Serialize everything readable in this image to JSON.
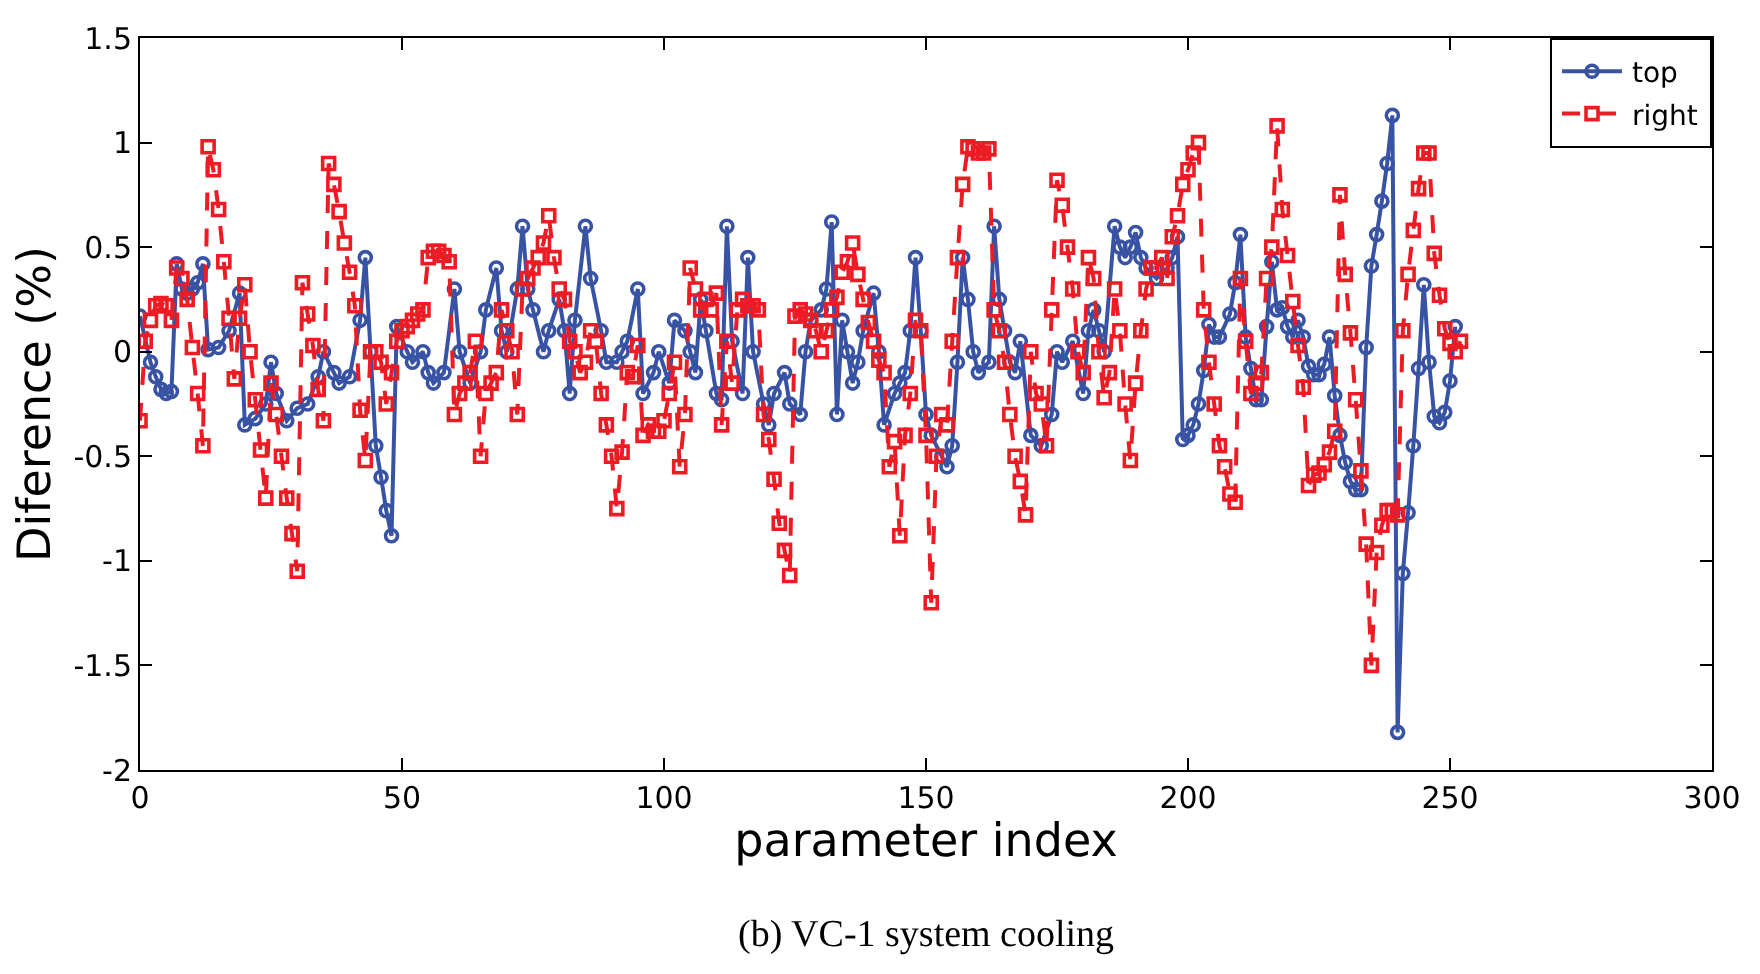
{
  "chart_data": {
    "type": "line",
    "xlabel": "parameter index",
    "ylabel": "Diference (%)",
    "annotations": [
      "(b) VC-1 system cooling"
    ],
    "xlim": [
      0,
      300
    ],
    "xticks": [
      0,
      50,
      100,
      150,
      200,
      250,
      300
    ],
    "ylim": [
      -2,
      1.5
    ],
    "yticks": [
      -2,
      -1.5,
      -1,
      -0.5,
      0,
      0.5,
      1,
      1.5
    ],
    "legend": "top right",
    "series": [
      {
        "name": "top",
        "color": "#3953a4",
        "marker": "circle",
        "line_style": "solid",
        "x": [
          0,
          2,
          3,
          4,
          5,
          6,
          7,
          8,
          9,
          10,
          11,
          12,
          13,
          15,
          17,
          19,
          20,
          22,
          24,
          25,
          26,
          28,
          30,
          32,
          34,
          35,
          37,
          38,
          40,
          42,
          43,
          44,
          45,
          46,
          47,
          48,
          49,
          51,
          52,
          54,
          55,
          56,
          58,
          60,
          61,
          63,
          65,
          66,
          68,
          69,
          70,
          72,
          73,
          74,
          75,
          77,
          78,
          80,
          81,
          82,
          83,
          85,
          86,
          88,
          89,
          91,
          92,
          93,
          95,
          96,
          98,
          99,
          101,
          102,
          104,
          105,
          106,
          107,
          108,
          110,
          111,
          112,
          113,
          115,
          116,
          117,
          119,
          120,
          121,
          123,
          124,
          126,
          127,
          128,
          130,
          131,
          132,
          133,
          134,
          135,
          136,
          137,
          138,
          140,
          141,
          142,
          144,
          145,
          146,
          147,
          148,
          149,
          150,
          151,
          153,
          154,
          155,
          156,
          157,
          158,
          159,
          160,
          162,
          163,
          164,
          165,
          166,
          167,
          168,
          170,
          172,
          174,
          175,
          176,
          178,
          180,
          181,
          182,
          183,
          184,
          186,
          187,
          188,
          189,
          190,
          191,
          192,
          194,
          196,
          197,
          198,
          199,
          200,
          201,
          202,
          203,
          204,
          205,
          206,
          208,
          209,
          210,
          211,
          212,
          213,
          214,
          215,
          216,
          217,
          218,
          219,
          220,
          221,
          222,
          223,
          224,
          225,
          226,
          227,
          228,
          229,
          230,
          231,
          232,
          233,
          234,
          235,
          236,
          237,
          238,
          239,
          240,
          241,
          242,
          243,
          244,
          245,
          246,
          247,
          248,
          249,
          250,
          251
        ],
        "values": [
          0.17,
          -0.05,
          -0.12,
          -0.18,
          -0.2,
          -0.19,
          0.42,
          0.3,
          0.28,
          0.3,
          0.33,
          0.42,
          0.01,
          0.02,
          0.1,
          0.28,
          -0.35,
          -0.32,
          -0.25,
          -0.05,
          -0.2,
          -0.33,
          -0.27,
          -0.25,
          -0.12,
          0.0,
          -0.1,
          -0.15,
          -0.12,
          0.15,
          0.45,
          0.0,
          -0.45,
          -0.6,
          -0.76,
          -0.88,
          0.12,
          0.0,
          -0.05,
          0.0,
          -0.1,
          -0.15,
          -0.1,
          0.3,
          0.0,
          -0.15,
          0.0,
          0.2,
          0.4,
          0.1,
          0.0,
          0.3,
          0.6,
          0.3,
          0.2,
          0.0,
          0.1,
          0.25,
          0.1,
          -0.2,
          0.15,
          0.6,
          0.35,
          0.1,
          -0.05,
          -0.05,
          0.0,
          0.05,
          0.3,
          -0.2,
          -0.1,
          0.0,
          -0.15,
          0.15,
          0.1,
          0.0,
          -0.1,
          0.25,
          0.1,
          -0.2,
          -0.23,
          0.6,
          0.05,
          -0.2,
          0.45,
          0.0,
          -0.25,
          -0.35,
          -0.2,
          -0.1,
          -0.25,
          -0.3,
          0.0,
          0.15,
          0.2,
          0.3,
          0.62,
          -0.3,
          0.15,
          0.0,
          -0.15,
          -0.05,
          0.1,
          0.28,
          0.0,
          -0.35,
          -0.2,
          -0.15,
          -0.1,
          0.1,
          0.45,
          0.1,
          -0.3,
          -0.4,
          -0.5,
          -0.55,
          -0.45,
          -0.05,
          0.45,
          0.25,
          0.0,
          -0.1,
          -0.05,
          0.6,
          0.25,
          0.1,
          -0.05,
          -0.1,
          0.05,
          -0.4,
          -0.45,
          -0.3,
          0.0,
          -0.05,
          0.05,
          -0.2,
          0.1,
          0.2,
          0.1,
          0.0,
          0.6,
          0.5,
          0.45,
          0.5,
          0.57,
          0.45,
          0.4,
          0.35,
          0.4,
          0.45,
          0.55,
          -0.42,
          -0.4,
          -0.35,
          -0.25,
          -0.09,
          0.13,
          0.07,
          0.07,
          0.18,
          0.33,
          0.56,
          0.07,
          -0.08,
          -0.23,
          -0.23,
          0.12,
          0.43,
          0.2,
          0.21,
          0.12,
          0.07,
          0.15,
          0.07,
          -0.07,
          -0.11,
          -0.11,
          -0.06,
          0.07,
          -0.21,
          -0.4,
          -0.53,
          -0.62,
          -0.66,
          -0.66,
          0.02,
          0.41,
          0.56,
          0.72,
          0.9,
          1.13,
          -1.82,
          -1.06,
          -0.77,
          -0.45,
          -0.08,
          0.32,
          -0.05,
          -0.31,
          -0.34,
          -0.29,
          -0.14,
          0.12
        ]
      },
      {
        "name": "right",
        "color": "#ed1c24",
        "marker": "square",
        "line_style": "dashed",
        "x": [
          0,
          1,
          2,
          3,
          4,
          5,
          6,
          7,
          8,
          9,
          10,
          11,
          12,
          13,
          14,
          15,
          16,
          17,
          18,
          19,
          20,
          21,
          22,
          23,
          24,
          25,
          26,
          27,
          28,
          29,
          30,
          31,
          32,
          33,
          34,
          35,
          36,
          37,
          38,
          39,
          40,
          41,
          42,
          43,
          44,
          45,
          46,
          47,
          48,
          49,
          50,
          51,
          52,
          53,
          54,
          55,
          56,
          57,
          58,
          59,
          60,
          61,
          62,
          63,
          64,
          65,
          66,
          67,
          68,
          69,
          70,
          71,
          72,
          73,
          74,
          75,
          76,
          77,
          78,
          79,
          80,
          81,
          82,
          83,
          84,
          85,
          86,
          87,
          88,
          89,
          90,
          91,
          92,
          93,
          94,
          95,
          96,
          97,
          98,
          99,
          100,
          101,
          102,
          103,
          104,
          105,
          106,
          107,
          108,
          109,
          110,
          111,
          112,
          113,
          114,
          115,
          116,
          117,
          118,
          119,
          120,
          121,
          122,
          123,
          124,
          125,
          126,
          127,
          128,
          129,
          130,
          131,
          132,
          133,
          134,
          135,
          136,
          137,
          138,
          139,
          140,
          141,
          142,
          143,
          144,
          145,
          146,
          147,
          148,
          149,
          150,
          151,
          152,
          153,
          154,
          155,
          156,
          157,
          158,
          159,
          160,
          161,
          162,
          163,
          164,
          165,
          166,
          167,
          168,
          169,
          170,
          171,
          172,
          173,
          174,
          175,
          176,
          177,
          178,
          179,
          180,
          181,
          182,
          183,
          184,
          185,
          186,
          187,
          188,
          189,
          190,
          191,
          192,
          193,
          194,
          195,
          196,
          197,
          198,
          199,
          200,
          201,
          202,
          203,
          204,
          205,
          206,
          207,
          208,
          209,
          210,
          211,
          212,
          213,
          214,
          215,
          216,
          217,
          218,
          219,
          220,
          221,
          222,
          223,
          224,
          225,
          226,
          227,
          228,
          229,
          230,
          231,
          232,
          233,
          234,
          235,
          236,
          237,
          238,
          239,
          240,
          241,
          242,
          243,
          244,
          245,
          246,
          247,
          248,
          249,
          250,
          251,
          252
        ],
        "values": [
          -0.33,
          0.05,
          0.15,
          0.22,
          0.23,
          0.22,
          0.15,
          0.4,
          0.35,
          0.25,
          0.02,
          -0.2,
          -0.45,
          0.98,
          0.87,
          0.68,
          0.43,
          0.16,
          -0.13,
          0.16,
          0.32,
          0.0,
          -0.23,
          -0.47,
          -0.7,
          -0.15,
          -0.3,
          -0.5,
          -0.7,
          -0.87,
          -1.05,
          0.33,
          0.18,
          0.03,
          -0.18,
          -0.33,
          0.9,
          0.8,
          0.67,
          0.52,
          0.38,
          0.22,
          -0.28,
          -0.52,
          0.0,
          0.0,
          -0.05,
          -0.25,
          -0.1,
          0.05,
          0.1,
          0.12,
          0.15,
          0.18,
          0.2,
          0.45,
          0.48,
          0.48,
          0.46,
          0.43,
          -0.3,
          -0.2,
          -0.15,
          -0.1,
          0.05,
          -0.5,
          -0.2,
          -0.15,
          -0.1,
          0.2,
          0.1,
          0.0,
          -0.3,
          0.3,
          0.35,
          0.4,
          0.45,
          0.52,
          0.65,
          0.45,
          0.3,
          0.25,
          0.05,
          0.0,
          -0.1,
          -0.05,
          0.1,
          0.05,
          -0.2,
          -0.35,
          -0.5,
          -0.75,
          -0.48,
          -0.1,
          -0.12,
          0.03,
          -0.4,
          -0.35,
          -0.38,
          -0.38,
          -0.33,
          -0.2,
          -0.05,
          -0.55,
          -0.3,
          0.4,
          0.3,
          0.2,
          0.25,
          0.2,
          0.28,
          -0.35,
          0.05,
          -0.15,
          0.2,
          0.25,
          0.22,
          0.22,
          0.2,
          -0.3,
          -0.42,
          -0.61,
          -0.82,
          -0.95,
          -1.07,
          0.17,
          0.2,
          0.18,
          0.15,
          0.1,
          0.0,
          0.1,
          0.2,
          0.26,
          0.38,
          0.43,
          0.52,
          0.37,
          0.25,
          0.14,
          0.05,
          -0.04,
          -0.1,
          -0.55,
          -0.43,
          -0.88,
          -0.4,
          -0.2,
          0.15,
          0.1,
          -0.4,
          -1.2,
          -0.5,
          -0.3,
          -0.35,
          0.05,
          0.45,
          0.8,
          0.98,
          0.97,
          0.95,
          0.95,
          0.97,
          0.2,
          0.1,
          -0.05,
          -0.3,
          -0.5,
          -0.62,
          -0.78,
          0.0,
          -0.2,
          -0.25,
          -0.45,
          0.2,
          0.82,
          0.7,
          0.5,
          0.3,
          0.0,
          -0.1,
          0.45,
          0.35,
          0.0,
          -0.22,
          -0.1,
          0.3,
          0.1,
          -0.25,
          -0.52,
          -0.15,
          0.1,
          0.3,
          0.4,
          0.4,
          0.45,
          0.35,
          0.55,
          0.65,
          0.8,
          0.87,
          0.95,
          1.0,
          0.2,
          -0.05,
          -0.25,
          -0.45,
          -0.55,
          -0.68,
          -0.72,
          0.35,
          0.05,
          -0.2,
          -0.15,
          -0.1,
          0.35,
          0.5,
          1.08,
          0.68,
          0.46,
          0.24,
          0.03,
          -0.17,
          -0.64,
          -0.59,
          -0.58,
          -0.54,
          -0.48,
          -0.38,
          0.75,
          0.37,
          0.09,
          -0.23,
          -0.57,
          -0.92,
          -1.5,
          -0.96,
          -0.83,
          -0.76,
          -0.76,
          -0.78,
          0.1,
          0.37,
          0.58,
          0.78,
          0.95,
          0.95,
          0.47,
          0.27,
          0.11,
          0.04,
          0.0,
          0.05
        ]
      }
    ]
  }
}
